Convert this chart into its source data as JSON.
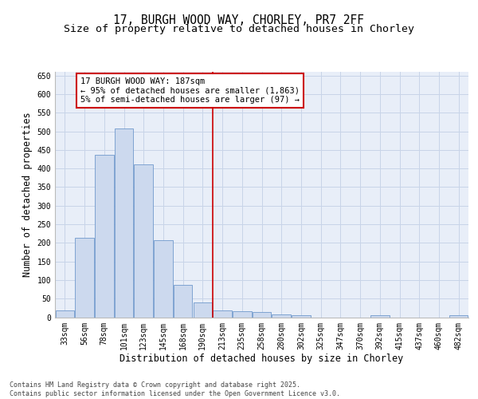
{
  "title_line1": "17, BURGH WOOD WAY, CHORLEY, PR7 2FF",
  "title_line2": "Size of property relative to detached houses in Chorley",
  "xlabel": "Distribution of detached houses by size in Chorley",
  "ylabel": "Number of detached properties",
  "bar_labels": [
    "33sqm",
    "56sqm",
    "78sqm",
    "101sqm",
    "123sqm",
    "145sqm",
    "168sqm",
    "190sqm",
    "213sqm",
    "235sqm",
    "258sqm",
    "280sqm",
    "302sqm",
    "325sqm",
    "347sqm",
    "370sqm",
    "392sqm",
    "415sqm",
    "437sqm",
    "460sqm",
    "482sqm"
  ],
  "bar_values": [
    18,
    213,
    437,
    507,
    410,
    207,
    87,
    40,
    18,
    17,
    13,
    8,
    5,
    0,
    0,
    0,
    5,
    0,
    0,
    0,
    5
  ],
  "bar_color": "#ccd9ee",
  "bar_edge_color": "#7099cc",
  "vline_x_index": 7.5,
  "vline_color": "#cc0000",
  "annotation_text": "17 BURGH WOOD WAY: 187sqm\n← 95% of detached houses are smaller (1,863)\n5% of semi-detached houses are larger (97) →",
  "annotation_box_color": "#cc0000",
  "annotation_bg": "#ffffff",
  "ylim": [
    0,
    660
  ],
  "yticks": [
    0,
    50,
    100,
    150,
    200,
    250,
    300,
    350,
    400,
    450,
    500,
    550,
    600,
    650
  ],
  "grid_color": "#c8d4e8",
  "background_color": "#e8eef8",
  "footer_text": "Contains HM Land Registry data © Crown copyright and database right 2025.\nContains public sector information licensed under the Open Government Licence v3.0.",
  "title_fontsize": 10.5,
  "subtitle_fontsize": 9.5,
  "axis_label_fontsize": 8.5,
  "tick_fontsize": 7,
  "annotation_fontsize": 7.5,
  "footer_fontsize": 6
}
